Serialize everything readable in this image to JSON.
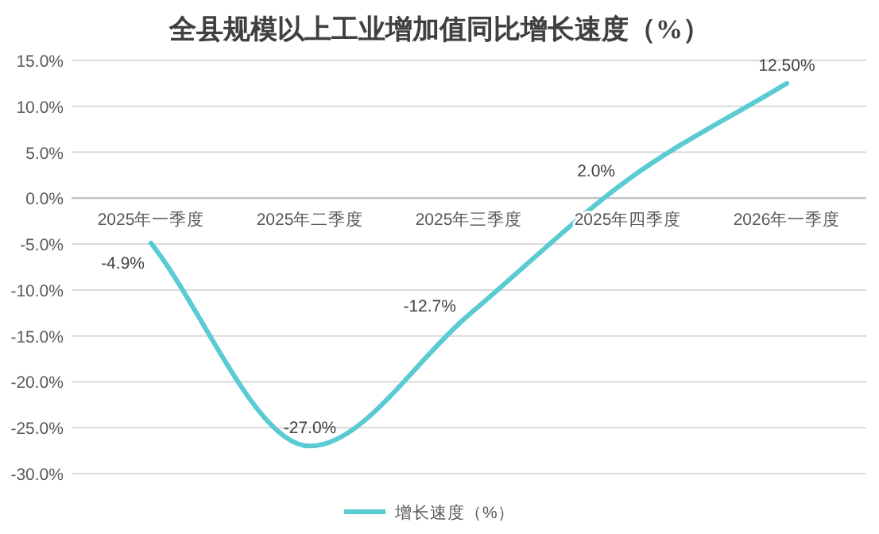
{
  "chart_data": {
    "type": "line",
    "title": "全县规模以上工业增加值同比增长速度（%）",
    "categories": [
      "2025年一季度",
      "2025年二季度",
      "2025年三季度",
      "2025年四季度",
      "2026年一季度"
    ],
    "series": [
      {
        "name": "增长速度（%）",
        "color": "#5bcbd3",
        "values": [
          -4.9,
          -27.0,
          -12.7,
          2.0,
          12.5
        ],
        "value_labels": [
          "-4.9%",
          "-27.0%",
          "-12.7%",
          "2.0%",
          "12.50%"
        ]
      }
    ],
    "ylim": [
      -30,
      15
    ],
    "yticks": [
      {
        "value": -30,
        "label": "-30.0%"
      },
      {
        "value": -25,
        "label": "-25.0%"
      },
      {
        "value": -20,
        "label": "-20.0%"
      },
      {
        "value": -15,
        "label": "-15.0%"
      },
      {
        "value": -10,
        "label": "-10.0%"
      },
      {
        "value": -5,
        "label": "-5.0%"
      },
      {
        "value": 0,
        "label": "0.0%"
      },
      {
        "value": 5,
        "label": "5.0%"
      },
      {
        "value": 10,
        "label": "10.0%"
      },
      {
        "value": 15,
        "label": "15.0%"
      }
    ],
    "grid": "y",
    "legend": "bottom",
    "marker": "none",
    "line_style": "solid"
  }
}
